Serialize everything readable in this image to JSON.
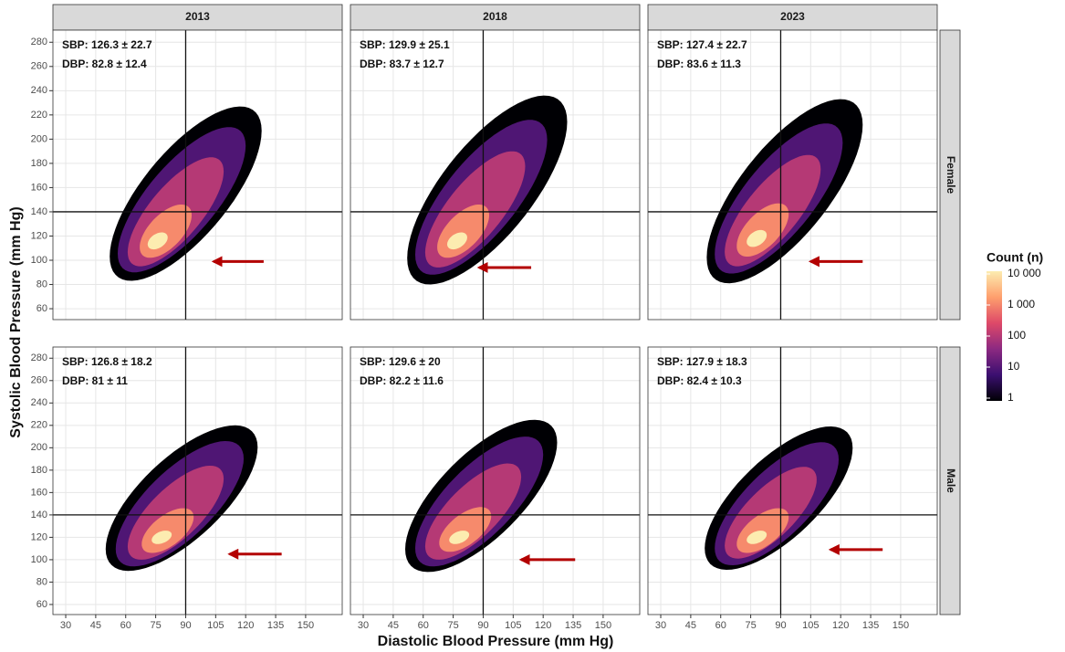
{
  "chart_data": {
    "type": "hexbin",
    "x_label": "Diastolic Blood Pressure (mm Hg)",
    "y_label": "Systolic Blood Pressure (mm Hg)",
    "columns": [
      "2013",
      "2018",
      "2023"
    ],
    "rows": [
      "Female",
      "Male"
    ],
    "xlim": [
      23.6,
      168.3
    ],
    "ylim": [
      51,
      290
    ],
    "xticks": [
      30,
      45,
      60,
      75,
      90,
      105,
      120,
      135,
      150
    ],
    "yticks": [
      60,
      80,
      100,
      120,
      140,
      160,
      180,
      200,
      220,
      240,
      260,
      280
    ],
    "grid": true,
    "reference_lines": {
      "x": 90,
      "y": 140
    },
    "arrow_color": "#b30000",
    "legend": {
      "title": "Count (n)",
      "log_scale": true,
      "lim": [
        1,
        10000
      ],
      "palette": [
        "#000004",
        "#3b0f70",
        "#8c2981",
        "#de4968",
        "#fe9f6d",
        "#fcecb0"
      ],
      "ticks": [
        {
          "value": 10000,
          "label": "10 000"
        },
        {
          "value": 1000,
          "label": "1 000"
        },
        100,
        10,
        1
      ]
    },
    "panels": [
      [
        {
          "annotations": [
            "SBP: 126.3 ± 22.7",
            "DBP: 82.8 ± 12.4"
          ],
          "layers": [
            {
              "count": 1,
              "cx": 90,
              "cy": 155,
              "rx": 38,
              "ry": 72,
              "rho": 0.72
            },
            {
              "count": 10,
              "cx": 88,
              "cy": 150,
              "rx": 32,
              "ry": 60,
              "rho": 0.74
            },
            {
              "count": 100,
              "cx": 85,
              "cy": 140,
              "rx": 24,
              "ry": 45,
              "rho": 0.74
            },
            {
              "count": 1000,
              "cx": 80,
              "cy": 124,
              "rx": 13,
              "ry": 22,
              "rho": 0.6
            },
            {
              "count": 10000,
              "cx": 76,
              "cy": 116,
              "rx": 5,
              "ry": 7,
              "rho": 0.4
            }
          ],
          "arrow": {
            "from": [
              129,
              99
            ],
            "to": [
              104,
              99
            ]
          }
        },
        {
          "annotations": [
            "SBP: 129.9 ± 25.1",
            "DBP: 83.7 ± 12.7"
          ],
          "layers": [
            {
              "count": 1,
              "cx": 92,
              "cy": 158,
              "rx": 40,
              "ry": 78,
              "rho": 0.72
            },
            {
              "count": 10,
              "cx": 89,
              "cy": 152,
              "rx": 33,
              "ry": 64,
              "rho": 0.74
            },
            {
              "count": 100,
              "cx": 86,
              "cy": 142,
              "rx": 25,
              "ry": 48,
              "rho": 0.74
            },
            {
              "count": 1000,
              "cx": 80,
              "cy": 124,
              "rx": 13,
              "ry": 22,
              "rho": 0.6
            },
            {
              "count": 10000,
              "cx": 77,
              "cy": 116,
              "rx": 5,
              "ry": 7,
              "rho": 0.4
            }
          ],
          "arrow": {
            "from": [
              114,
              94
            ],
            "to": [
              88,
              94
            ]
          }
        },
        {
          "annotations": [
            "SBP: 127.4 ± 22.7",
            "DBP: 83.6 ± 11.3"
          ],
          "layers": [
            {
              "count": 1,
              "cx": 92,
              "cy": 157,
              "rx": 39,
              "ry": 76,
              "rho": 0.72
            },
            {
              "count": 10,
              "cx": 89,
              "cy": 151,
              "rx": 32,
              "ry": 62,
              "rho": 0.74
            },
            {
              "count": 100,
              "cx": 86,
              "cy": 141,
              "rx": 24,
              "ry": 46,
              "rho": 0.74
            },
            {
              "count": 1000,
              "cx": 81,
              "cy": 125,
              "rx": 13,
              "ry": 22,
              "rho": 0.6
            },
            {
              "count": 10000,
              "cx": 78,
              "cy": 118,
              "rx": 5,
              "ry": 7,
              "rho": 0.4
            }
          ],
          "arrow": {
            "from": [
              131,
              99
            ],
            "to": [
              105,
              99
            ]
          }
        }
      ],
      [
        {
          "annotations": [
            "SBP: 126.8 ± 18.2",
            "DBP: 81 ± 11"
          ],
          "layers": [
            {
              "count": 1,
              "cx": 88,
              "cy": 155,
              "rx": 38,
              "ry": 65,
              "rho": 0.7
            },
            {
              "count": 10,
              "cx": 87,
              "cy": 150,
              "rx": 32,
              "ry": 56,
              "rho": 0.72
            },
            {
              "count": 100,
              "cx": 85,
              "cy": 142,
              "rx": 24,
              "ry": 42,
              "rho": 0.72
            },
            {
              "count": 1000,
              "cx": 81,
              "cy": 126,
              "rx": 13,
              "ry": 20,
              "rho": 0.6
            },
            {
              "count": 10000,
              "cx": 78,
              "cy": 120,
              "rx": 5,
              "ry": 6,
              "rho": 0.4
            }
          ],
          "arrow": {
            "from": [
              138,
              105
            ],
            "to": [
              112,
              105
            ]
          }
        },
        {
          "annotations": [
            "SBP: 129.6 ± 20",
            "DBP: 82.2 ± 11.6"
          ],
          "layers": [
            {
              "count": 1,
              "cx": 89,
              "cy": 157,
              "rx": 38,
              "ry": 68,
              "rho": 0.7
            },
            {
              "count": 10,
              "cx": 88,
              "cy": 152,
              "rx": 32,
              "ry": 58,
              "rho": 0.72
            },
            {
              "count": 100,
              "cx": 85,
              "cy": 143,
              "rx": 24,
              "ry": 43,
              "rho": 0.72
            },
            {
              "count": 1000,
              "cx": 81,
              "cy": 127,
              "rx": 13,
              "ry": 20,
              "rho": 0.6
            },
            {
              "count": 10000,
              "cx": 78,
              "cy": 120,
              "rx": 5,
              "ry": 6,
              "rho": 0.4
            }
          ],
          "arrow": {
            "from": [
              136,
              100
            ],
            "to": [
              109,
              100
            ]
          }
        },
        {
          "annotations": [
            "SBP: 127.9 ± 18.3",
            "DBP: 82.4 ± 10.3"
          ],
          "layers": [
            {
              "count": 1,
              "cx": 89,
              "cy": 155,
              "rx": 37,
              "ry": 64,
              "rho": 0.7
            },
            {
              "count": 10,
              "cx": 88,
              "cy": 150,
              "rx": 31,
              "ry": 55,
              "rho": 0.72
            },
            {
              "count": 100,
              "cx": 85,
              "cy": 142,
              "rx": 23,
              "ry": 41,
              "rho": 0.72
            },
            {
              "count": 1000,
              "cx": 81,
              "cy": 126,
              "rx": 13,
              "ry": 20,
              "rho": 0.6
            },
            {
              "count": 10000,
              "cx": 78,
              "cy": 120,
              "rx": 5,
              "ry": 6,
              "rho": 0.4
            }
          ],
          "arrow": {
            "from": [
              141,
              109
            ],
            "to": [
              115,
              109
            ]
          }
        }
      ]
    ]
  }
}
